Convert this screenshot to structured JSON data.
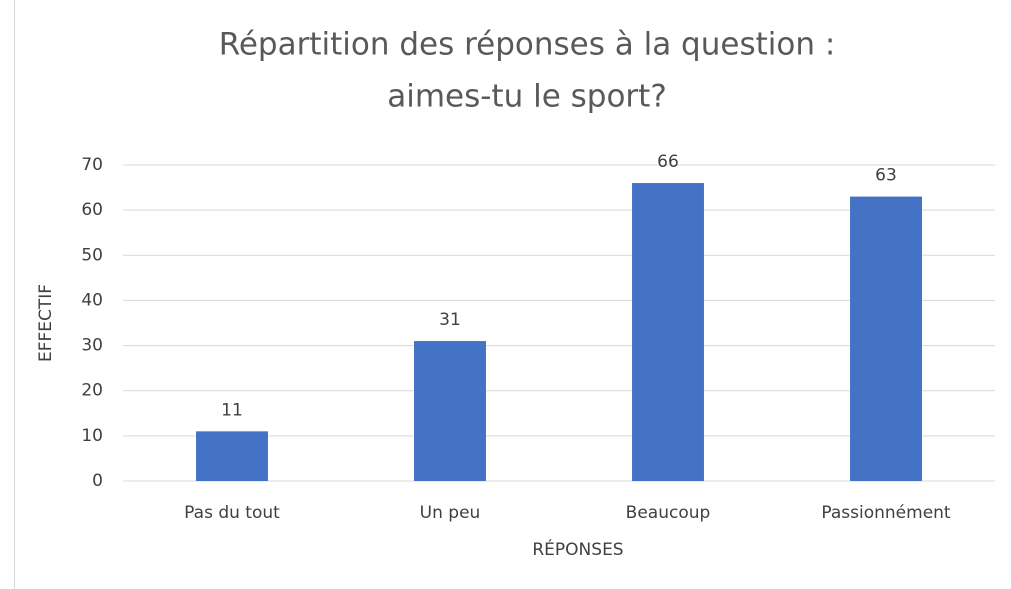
{
  "chart_data": {
    "type": "bar",
    "title": [
      "Répartition des réponses à la question :",
      "aimes-tu le sport?"
    ],
    "x_label": "RÉPONSES",
    "y_label": "EFFECTIF",
    "categories": [
      "Pas du tout",
      "Un peu",
      "Beaucoup",
      "Passionnément"
    ],
    "values": [
      11,
      31,
      66,
      63
    ],
    "color": "#4472c4",
    "ylim": [
      0,
      70
    ],
    "yticks": [
      0,
      10,
      20,
      30,
      40,
      50,
      60,
      70
    ],
    "grid": true
  }
}
